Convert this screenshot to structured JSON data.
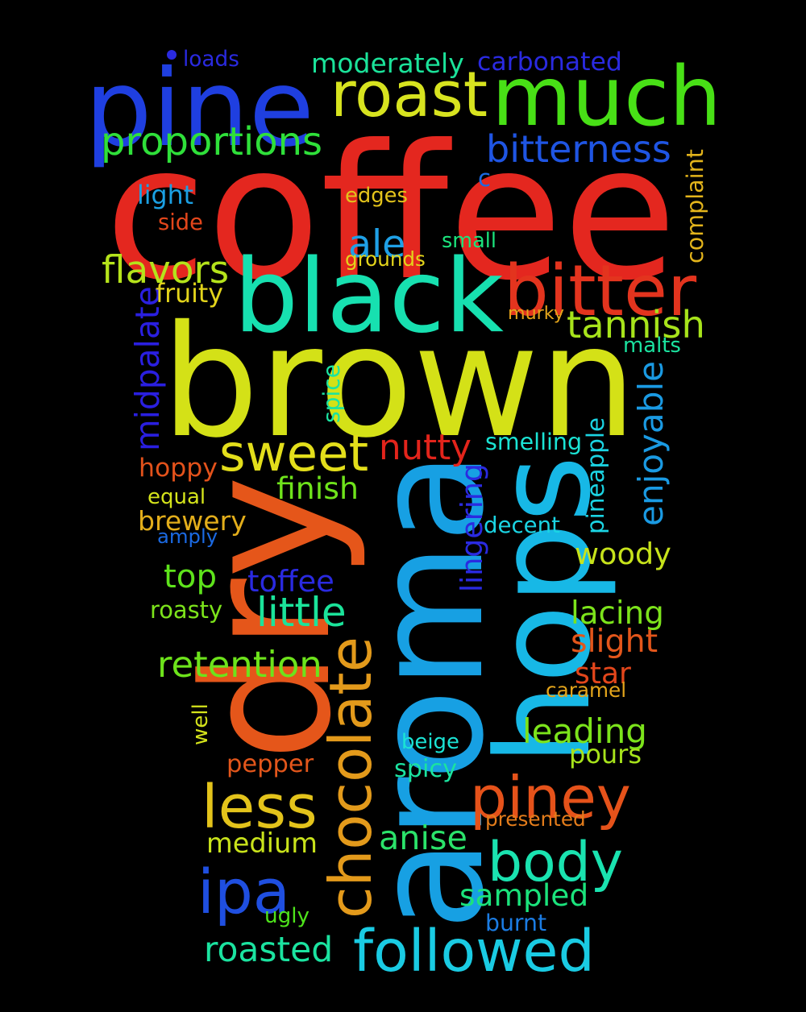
{
  "words": [
    {
      "text": "coffee",
      "color": "#e4271f"
    },
    {
      "text": "brown",
      "color": "#d4e117"
    },
    {
      "text": "aroma",
      "color": "#17a0e3"
    },
    {
      "text": "hops",
      "color": "#17b8e6"
    },
    {
      "text": "dry",
      "color": "#e5561a"
    },
    {
      "text": "pine",
      "color": "#1f3fe0"
    },
    {
      "text": "much",
      "color": "#48e016"
    },
    {
      "text": "black",
      "color": "#17e0b0"
    },
    {
      "text": "roast",
      "color": "#d7e31f"
    },
    {
      "text": "bitter",
      "color": "#e3341e"
    },
    {
      "text": "chocolate",
      "color": "#e39a1b"
    },
    {
      "text": "piney",
      "color": "#e5521a"
    },
    {
      "text": "body",
      "color": "#1ae3b0"
    },
    {
      "text": "followed",
      "color": "#1acbe3"
    },
    {
      "text": "less",
      "color": "#e3c31b"
    },
    {
      "text": "ipa",
      "color": "#1f4fe0"
    },
    {
      "text": "sweet",
      "color": "#e3de1b"
    },
    {
      "text": "proportions",
      "color": "#2fe03a"
    },
    {
      "text": "bitterness",
      "color": "#1f55e3"
    },
    {
      "text": "tannish",
      "color": "#a7e31b"
    },
    {
      "text": "flavors",
      "color": "#b5e31b"
    },
    {
      "text": "enjoyable",
      "color": "#1a9ae3"
    },
    {
      "text": "midpalate",
      "color": "#2a1fe0"
    },
    {
      "text": "nutty",
      "color": "#e3241b"
    },
    {
      "text": "woody",
      "color": "#c7e31b"
    },
    {
      "text": "retention",
      "color": "#6de31b"
    },
    {
      "text": "little",
      "color": "#1be39a"
    },
    {
      "text": "sampled",
      "color": "#1be37c"
    },
    {
      "text": "medium",
      "color": "#c9e31b"
    },
    {
      "text": "roasted",
      "color": "#1be3a0"
    },
    {
      "text": "anise",
      "color": "#2be36a"
    },
    {
      "text": "leading",
      "color": "#7ce31b"
    },
    {
      "text": "ale",
      "color": "#1fa0e6"
    },
    {
      "text": "moderately",
      "color": "#1be39a"
    },
    {
      "text": "carbonated",
      "color": "#2a2ae0"
    },
    {
      "text": "top",
      "color": "#5ee31b"
    },
    {
      "text": "brewery",
      "color": "#e3ae1b"
    },
    {
      "text": "hoppy",
      "color": "#e3521b"
    },
    {
      "text": "finish",
      "color": "#6fe31b"
    },
    {
      "text": "lacing",
      "color": "#7ce31b"
    },
    {
      "text": "slight",
      "color": "#e3561b"
    },
    {
      "text": "toffee",
      "color": "#2a2ae0"
    },
    {
      "text": "lingering",
      "color": "#2a2ae0"
    },
    {
      "text": "pineapple",
      "color": "#1bd4e3"
    },
    {
      "text": "star",
      "color": "#e3461b"
    },
    {
      "text": "pours",
      "color": "#a7e31b"
    },
    {
      "text": "pepper",
      "color": "#e3561b"
    },
    {
      "text": "spicy",
      "color": "#1be3a0"
    },
    {
      "text": "decent",
      "color": "#1bd4e3"
    },
    {
      "text": "smelling",
      "color": "#1be3d4"
    },
    {
      "text": "presented",
      "color": "#e37c1b"
    },
    {
      "text": "complaint",
      "color": "#e3b41b"
    },
    {
      "text": "edges",
      "color": "#e3c31b"
    },
    {
      "text": "grounds",
      "color": "#e3d41b"
    },
    {
      "text": "small",
      "color": "#1be37c"
    },
    {
      "text": "murky",
      "color": "#e3a41b"
    },
    {
      "text": "malts",
      "color": "#1be3a0"
    },
    {
      "text": "fruity",
      "color": "#e3d41b"
    },
    {
      "text": "light",
      "color": "#1ba0e3"
    },
    {
      "text": "side",
      "color": "#e3461b"
    },
    {
      "text": "loads",
      "color": "#2a2ae0"
    },
    {
      "text": "c",
      "color": "#1b6ae3"
    },
    {
      "text": "spice",
      "color": "#1be3a0"
    },
    {
      "text": "equal",
      "color": "#d4e31b"
    },
    {
      "text": "amply",
      "color": "#1b6ae3"
    },
    {
      "text": "roasty",
      "color": "#7ce31b"
    },
    {
      "text": "caramel",
      "color": "#e3a41b"
    },
    {
      "text": "well",
      "color": "#d4e31b"
    },
    {
      "text": "beige",
      "color": "#1be3d4"
    },
    {
      "text": "ugly",
      "color": "#4ee31b"
    },
    {
      "text": "burnt",
      "color": "#1b7ce3"
    }
  ],
  "dot_color": "#2a2ae0"
}
